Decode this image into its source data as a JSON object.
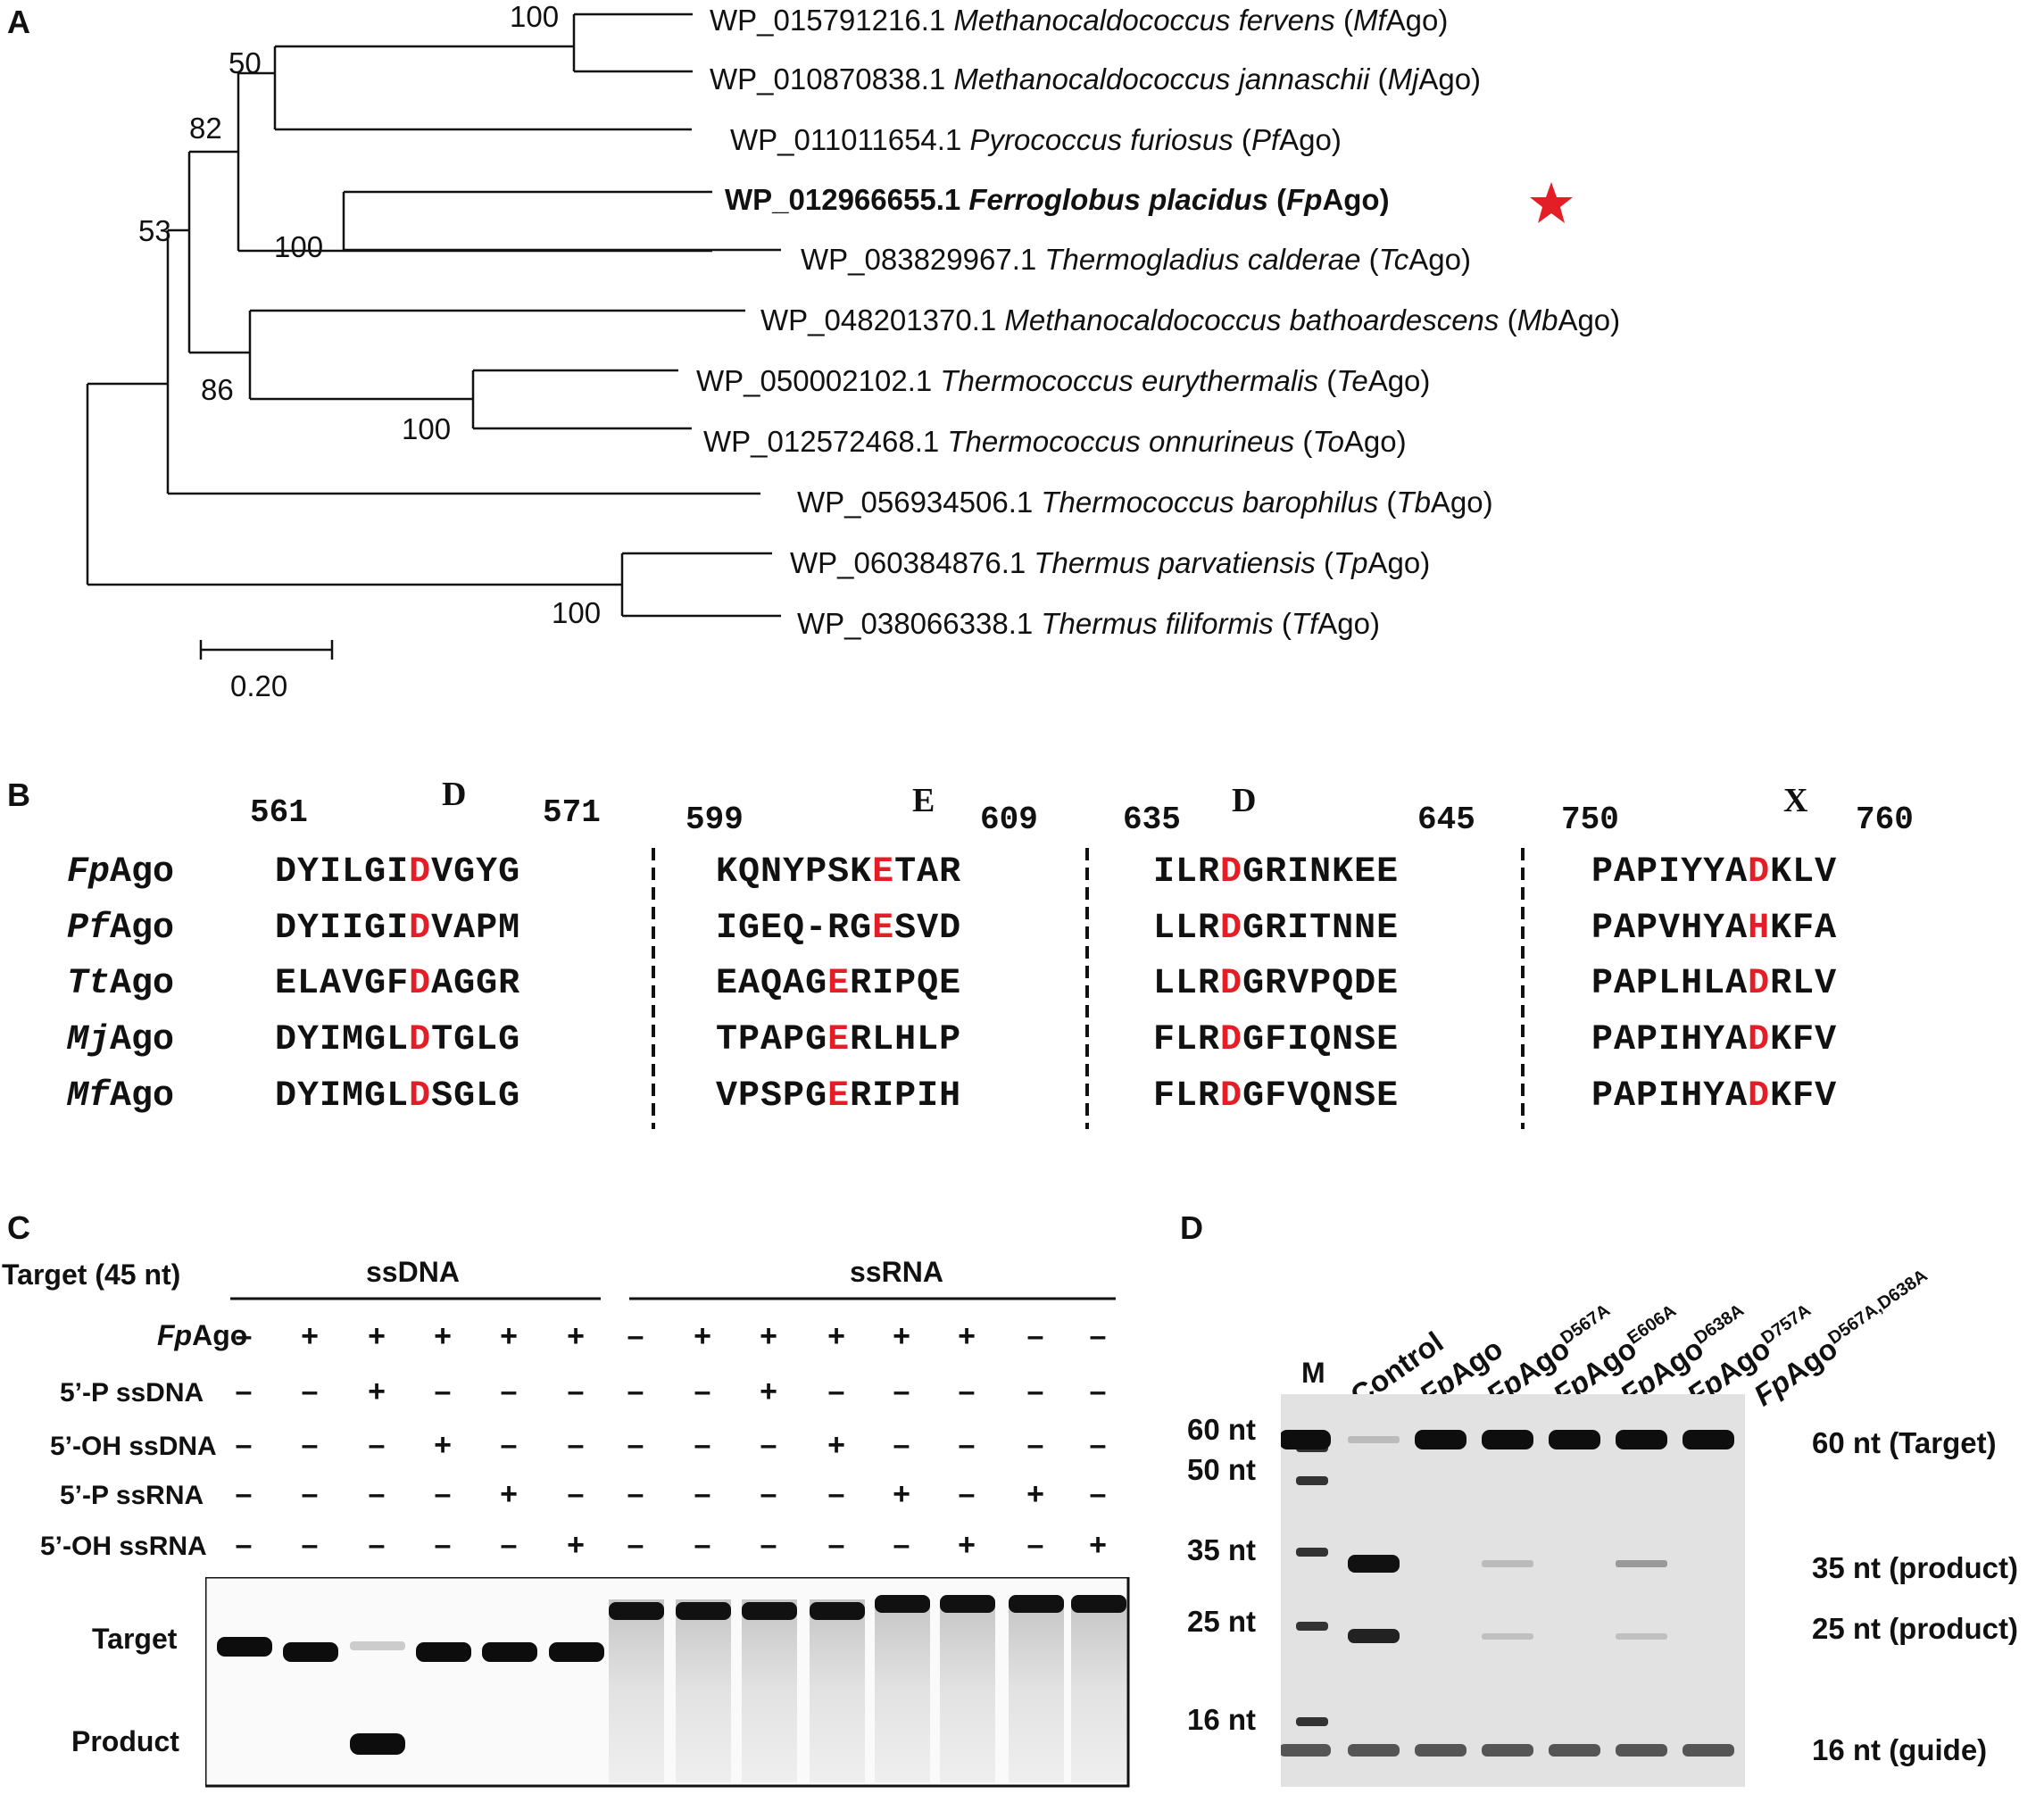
{
  "panels": {
    "a": "A",
    "b": "B",
    "c": "C",
    "d": "D"
  },
  "panelA": {
    "taxa": [
      {
        "acc": "WP_015791216.1",
        "species": "Methanocaldococcus fervens",
        "abbrev_i": "Mf",
        "abbrev": "Ago"
      },
      {
        "acc": "WP_010870838.1",
        "species": "Methanocaldococcus jannaschii",
        "abbrev_i": "Mj",
        "abbrev": "Ago"
      },
      {
        "acc": "WP_011011654.1",
        "species": "Pyrococcus furiosus",
        "abbrev_i": "Pf",
        "abbrev": "Ago"
      },
      {
        "acc": "WP_012966655.1",
        "species": "Ferroglobus placidus",
        "abbrev_i": "Fp",
        "abbrev": "Ago",
        "bold": true
      },
      {
        "acc": "WP_083829967.1",
        "species": "Thermogladius calderae",
        "abbrev_i": "Tc",
        "abbrev": "Ago"
      },
      {
        "acc": "WP_048201370.1",
        "species": "Methanocaldococcus bathoardescens",
        "abbrev_i": "Mb",
        "abbrev": "Ago"
      },
      {
        "acc": "WP_050002102.1",
        "species": "Thermococcus eurythermalis",
        "abbrev_i": "Te",
        "abbrev": "Ago"
      },
      {
        "acc": "WP_012572468.1",
        "species": "Thermococcus onnurineus",
        "abbrev_i": "To",
        "abbrev": "Ago"
      },
      {
        "acc": "WP_056934506.1",
        "species": "Thermococcus barophilus",
        "abbrev_i": "Tb",
        "abbrev": "Ago"
      },
      {
        "acc": "WP_060384876.1",
        "species": "Thermus parvatiensis",
        "abbrev_i": "Tp",
        "abbrev": "Ago"
      },
      {
        "acc": "WP_038066338.1",
        "species": "Thermus filiformis",
        "abbrev_i": "Tf",
        "abbrev": "Ago"
      }
    ],
    "bootstrap": [
      "100",
      "50",
      "82",
      "100",
      "53",
      "86",
      "100",
      "100"
    ],
    "scale_label": "0.20",
    "star_color": "#e41e26"
  },
  "panelB": {
    "names": [
      {
        "i": "Fp",
        "r": "Ago"
      },
      {
        "i": "Pf",
        "r": "Ago"
      },
      {
        "i": "Tt",
        "r": "Ago"
      },
      {
        "i": "Mj",
        "r": "Ago"
      },
      {
        "i": "Mf",
        "r": "Ago"
      }
    ],
    "blocks": [
      {
        "start": "561",
        "end": "571",
        "residue": "D",
        "hlpos": 6,
        "seqs": [
          "DYILGIDVGYG",
          "DYIIGIDVAPM",
          "ELAVGFDAGGR",
          "DYIMGLDTGLG",
          "DYIMGLDSGLG"
        ]
      },
      {
        "start": "599",
        "end": "609",
        "residue": "E",
        "hlpos": 7,
        "seqs": [
          "KQNYPSKETAR",
          "IGEQ-RGESVD",
          "EAQAGERIPQE",
          "TPAPGERLHLP",
          "VPSPGERIPIH"
        ],
        "hlpos_rows": [
          7,
          7,
          5,
          5,
          5
        ]
      },
      {
        "start": "635",
        "end": "645",
        "residue": "D",
        "hlpos": 3,
        "seqs": [
          "ILRDGRINKEE",
          "LLRDGRITNNE",
          "LLRDGRVPQDE",
          "FLRDGFIQNSE",
          "FLRDGFVQNSE"
        ]
      },
      {
        "start": "750",
        "end": "760",
        "residue": "X",
        "hlpos": 7,
        "seqs": [
          "PAPIYYADKLV",
          "PAPVHYAHKFA",
          "PAPLHLADRLV",
          "PAPIHYADKFV",
          "PAPIHYADKFV"
        ]
      }
    ],
    "highlight_color": "#e41e26"
  },
  "panelC": {
    "target_label": "Target (45 nt)",
    "group_ssdna": "ssDNA",
    "group_ssrna": "ssRNA",
    "row_labels": [
      {
        "i": "Fp",
        "r": "Ago"
      },
      {
        "t": "5’-P ssDNA"
      },
      {
        "t": "5’-OH ssDNA"
      },
      {
        "t": "5’-P ssRNA"
      },
      {
        "t": "5’-OH ssRNA"
      }
    ],
    "signs": [
      [
        "–",
        "+",
        "+",
        "+",
        "+",
        "+",
        "–",
        "+",
        "+",
        "+",
        "+",
        "+",
        "–",
        "–"
      ],
      [
        "–",
        "–",
        "+",
        "–",
        "–",
        "–",
        "–",
        "–",
        "+",
        "–",
        "–",
        "–",
        "–",
        "–"
      ],
      [
        "–",
        "–",
        "–",
        "+",
        "–",
        "–",
        "–",
        "–",
        "–",
        "+",
        "–",
        "–",
        "–",
        "–"
      ],
      [
        "–",
        "–",
        "–",
        "–",
        "+",
        "–",
        "–",
        "–",
        "–",
        "–",
        "+",
        "–",
        "+",
        "–"
      ],
      [
        "–",
        "–",
        "–",
        "–",
        "–",
        "+",
        "–",
        "–",
        "–",
        "–",
        "–",
        "+",
        "–",
        "+"
      ]
    ],
    "gel_target_label": "Target",
    "gel_product_label": "Product"
  },
  "panelD": {
    "marker_lane": "M",
    "lanes": [
      {
        "main": "Control",
        "sup": ""
      },
      {
        "main": "Fp",
        "main2": "Ago",
        "sup": ""
      },
      {
        "main": "Fp",
        "main2": "Ago",
        "sup": "D567A"
      },
      {
        "main": "Fp",
        "main2": "Ago",
        "sup": "E606A"
      },
      {
        "main": "Fp",
        "main2": "Ago",
        "sup": "D638A"
      },
      {
        "main": "Fp",
        "main2": "Ago",
        "sup": "D757A"
      },
      {
        "main": "Fp",
        "main2": "Ago",
        "sup": "D567A,D638A"
      }
    ],
    "size_labels": [
      "60 nt",
      "50 nt",
      "35 nt",
      "25 nt",
      "16 nt"
    ],
    "right_labels": [
      "60 nt (Target)",
      "35 nt (product)",
      "25 nt (product)",
      "16 nt (guide)"
    ]
  }
}
